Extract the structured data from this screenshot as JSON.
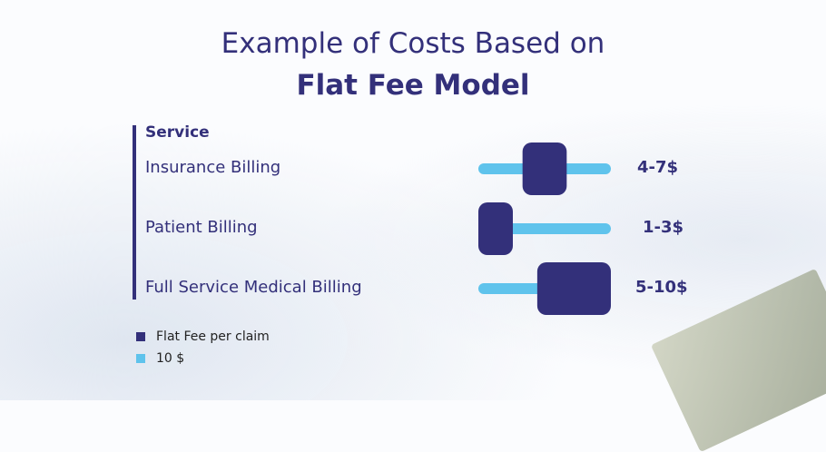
{
  "title_line1": "Example of Costs Based on",
  "title_line2": "Flat Fee Model",
  "chart_data": {
    "type": "range-bar",
    "column_header": "Service",
    "categories": [
      "Insurance Billing",
      "Patient Billing",
      "Full Service Medical Billing"
    ],
    "ranges": [
      [
        4,
        7
      ],
      [
        1,
        3
      ],
      [
        5,
        10
      ]
    ],
    "value_labels": [
      "4-7$",
      "1-3$",
      "5-10$"
    ],
    "track_max": 10,
    "legend": [
      {
        "label": "Flat Fee per claim",
        "color": "#33307a"
      },
      {
        "label": "10 $",
        "color": "#5fc3ec"
      }
    ],
    "legend_placement": "bottom-left"
  }
}
